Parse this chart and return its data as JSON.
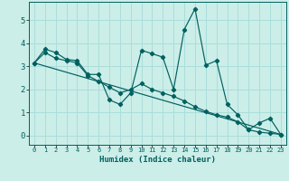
{
  "xlabel": "Humidex (Indice chaleur)",
  "bg_color": "#cceee8",
  "line_color": "#006060",
  "grid_color": "#aaddda",
  "xlim": [
    -0.5,
    23.5
  ],
  "ylim": [
    -0.4,
    5.8
  ],
  "xticks": [
    0,
    1,
    2,
    3,
    4,
    5,
    6,
    7,
    8,
    9,
    10,
    11,
    12,
    13,
    14,
    15,
    16,
    17,
    18,
    19,
    20,
    21,
    22,
    23
  ],
  "yticks": [
    0,
    1,
    2,
    3,
    4,
    5
  ],
  "series1_x": [
    0,
    1,
    2,
    3,
    4,
    5,
    6,
    7,
    8,
    9,
    10,
    11,
    12,
    13,
    14,
    15,
    16,
    17,
    18,
    19,
    20,
    21,
    22,
    23
  ],
  "series1_y": [
    3.15,
    3.75,
    3.6,
    3.3,
    3.25,
    2.65,
    2.65,
    1.55,
    1.35,
    1.85,
    3.7,
    3.55,
    3.4,
    2.0,
    4.6,
    5.5,
    3.05,
    3.25,
    1.35,
    0.9,
    0.25,
    0.55,
    0.75,
    0.05
  ],
  "series2_x": [
    0,
    1,
    2,
    3,
    4,
    5,
    6,
    7,
    8,
    9,
    10,
    11,
    12,
    13,
    14,
    15,
    16,
    17,
    18,
    19,
    20,
    21,
    22,
    23
  ],
  "series2_y": [
    3.15,
    3.6,
    3.35,
    3.25,
    3.15,
    2.6,
    2.35,
    2.1,
    1.85,
    2.0,
    2.25,
    2.0,
    1.85,
    1.7,
    1.5,
    1.25,
    1.05,
    0.9,
    0.8,
    0.6,
    0.25,
    0.15,
    0.1,
    0.05
  ],
  "trend_x": [
    0,
    23
  ],
  "trend_y": [
    3.15,
    0.05
  ]
}
